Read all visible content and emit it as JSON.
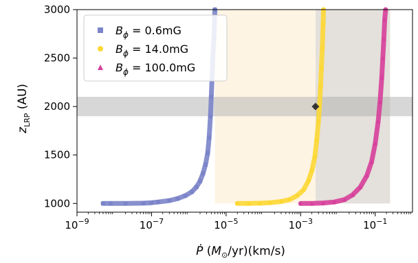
{
  "chart_data": {
    "type": "scatter",
    "title": "",
    "xlabel": "Ṗ (M⊙/yr)(km/s)",
    "ylabel": "z_LRP (AU)",
    "xscale": "log",
    "xlim": [
      1e-09,
      1
    ],
    "ylim": [
      910,
      3000
    ],
    "x_ticks": [
      {
        "value": 1e-09,
        "base": "10",
        "exp": "−9"
      },
      {
        "value": 1e-07,
        "base": "10",
        "exp": "−7"
      },
      {
        "value": 1e-05,
        "base": "10",
        "exp": "−5"
      },
      {
        "value": 0.001,
        "base": "10",
        "exp": "−3"
      },
      {
        "value": 0.1,
        "base": "10",
        "exp": "−1"
      }
    ],
    "y_ticks": [
      "1000",
      "1500",
      "2000",
      "2500",
      "3000"
    ],
    "legend": {
      "position": "top-left"
    },
    "series": [
      {
        "label_sym": "B",
        "label_sub": "ϕ",
        "label_val": " = 0.6mG",
        "color": "#7b84c9",
        "marker": "square",
        "x": [
          5e-09,
          8e-09,
          2e-08,
          6e-08,
          1e-07,
          1.5e-07,
          3e-07,
          5e-07,
          8e-07,
          1.2e-06,
          1.6e-06,
          2e-06,
          2.4e-06,
          2.8e-06,
          3.2e-06,
          3.5e-06,
          3.8e-06,
          4e-06,
          4.2e-06,
          4.4e-06,
          4.7e-06,
          4.9e-06,
          5e-06
        ],
        "y": [
          1000,
          1000,
          1000,
          1003,
          1008,
          1015,
          1030,
          1050,
          1080,
          1120,
          1170,
          1230,
          1310,
          1400,
          1520,
          1680,
          1900,
          2100,
          2300,
          2500,
          2700,
          2900,
          3000
        ]
      },
      {
        "label_sym": "B",
        "label_sub": "ϕ",
        "label_val": " = 14.0mG",
        "color": "#fdd835",
        "marker": "circle",
        "x": [
          2e-05,
          4e-05,
          8e-05,
          0.00015,
          0.0003,
          0.0005,
          0.0008,
          0.0012,
          0.0016,
          0.002,
          0.0024,
          0.0027,
          0.003,
          0.0032,
          0.0034,
          0.0036,
          0.0038,
          0.004,
          0.0041
        ],
        "y": [
          1000,
          1000,
          1003,
          1008,
          1020,
          1040,
          1080,
          1140,
          1230,
          1340,
          1480,
          1650,
          1850,
          2000,
          2200,
          2400,
          2600,
          2850,
          3000
        ]
      },
      {
        "label_sym": "B",
        "label_sub": "ϕ",
        "label_val": " = 100.0mG",
        "color": "#d63f9a",
        "marker": "triangle",
        "x": [
          0.001,
          0.002,
          0.004,
          0.008,
          0.015,
          0.025,
          0.04,
          0.06,
          0.08,
          0.1,
          0.12,
          0.135,
          0.15,
          0.16,
          0.17,
          0.18,
          0.19
        ],
        "y": [
          1000,
          1000,
          1005,
          1015,
          1040,
          1090,
          1170,
          1290,
          1430,
          1620,
          1850,
          2050,
          2300,
          2500,
          2700,
          2900,
          3000
        ]
      }
    ],
    "highlight": {
      "marker": "diamond",
      "x": 0.0025,
      "y": 2000,
      "color": "#333333"
    },
    "bands": {
      "horizontal": {
        "y_low": 1900,
        "y_high": 2100,
        "color": "#b0b0b0"
      },
      "regions": [
        {
          "x_low": 5e-06,
          "x_high": 0.0025,
          "color": "#fdf0d9"
        },
        {
          "x_low": 0.0025,
          "x_high": 0.25,
          "color": "#d9d3cc"
        }
      ]
    }
  }
}
